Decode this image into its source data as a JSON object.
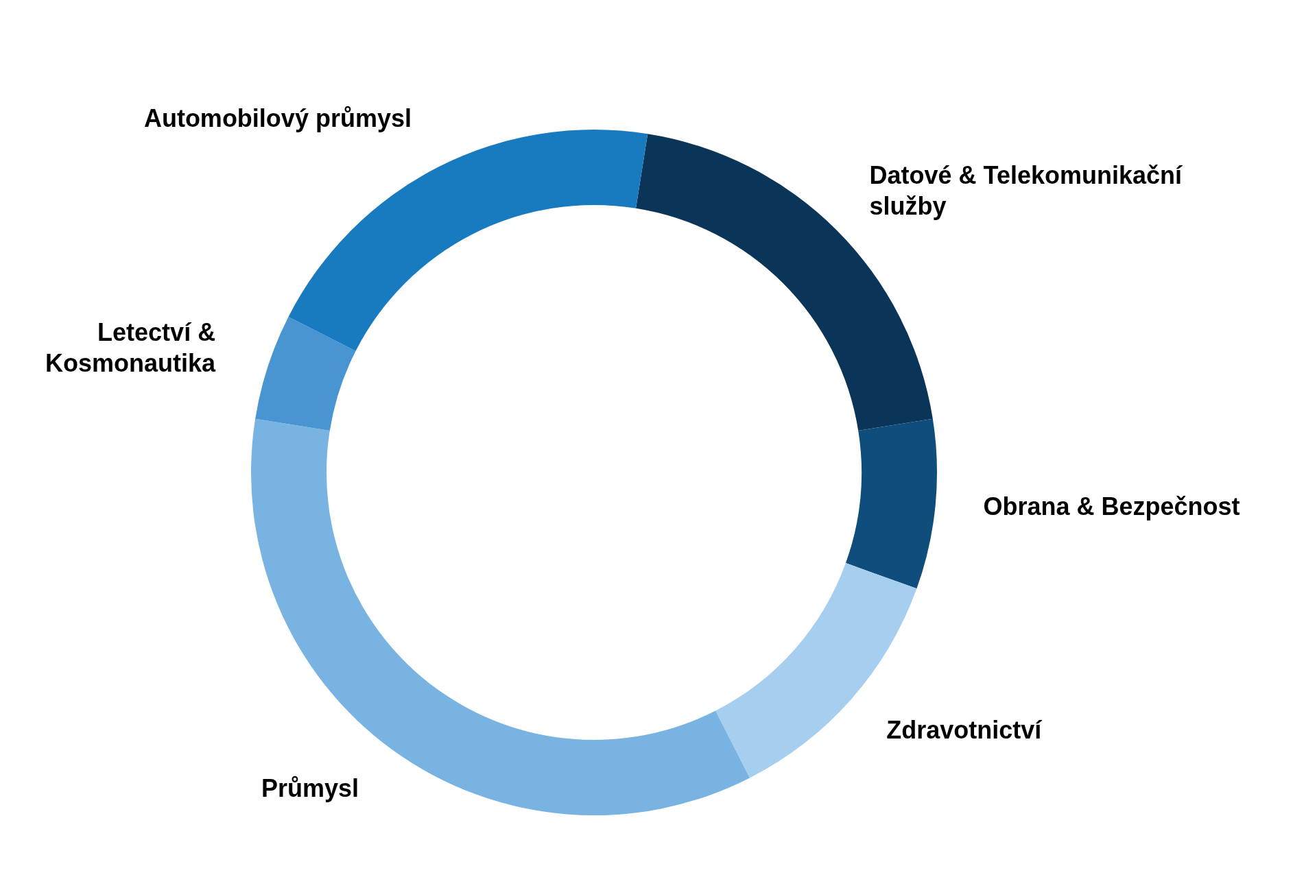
{
  "chart_data": {
    "type": "donut",
    "categories": [
      "Datové & Telekomunikační služby",
      "Obrana & Bezpečnost",
      "Zdravotnictví",
      "Průmysl",
      "Letectví & Kosmonautika",
      "Automobilový průmysl"
    ],
    "values": [
      20,
      8,
      12,
      35,
      5,
      20
    ],
    "colors": [
      "#0b3558",
      "#0f4e7c",
      "#a6cfef",
      "#78b3e2",
      "#4895d2",
      "#187bc0"
    ]
  }
}
